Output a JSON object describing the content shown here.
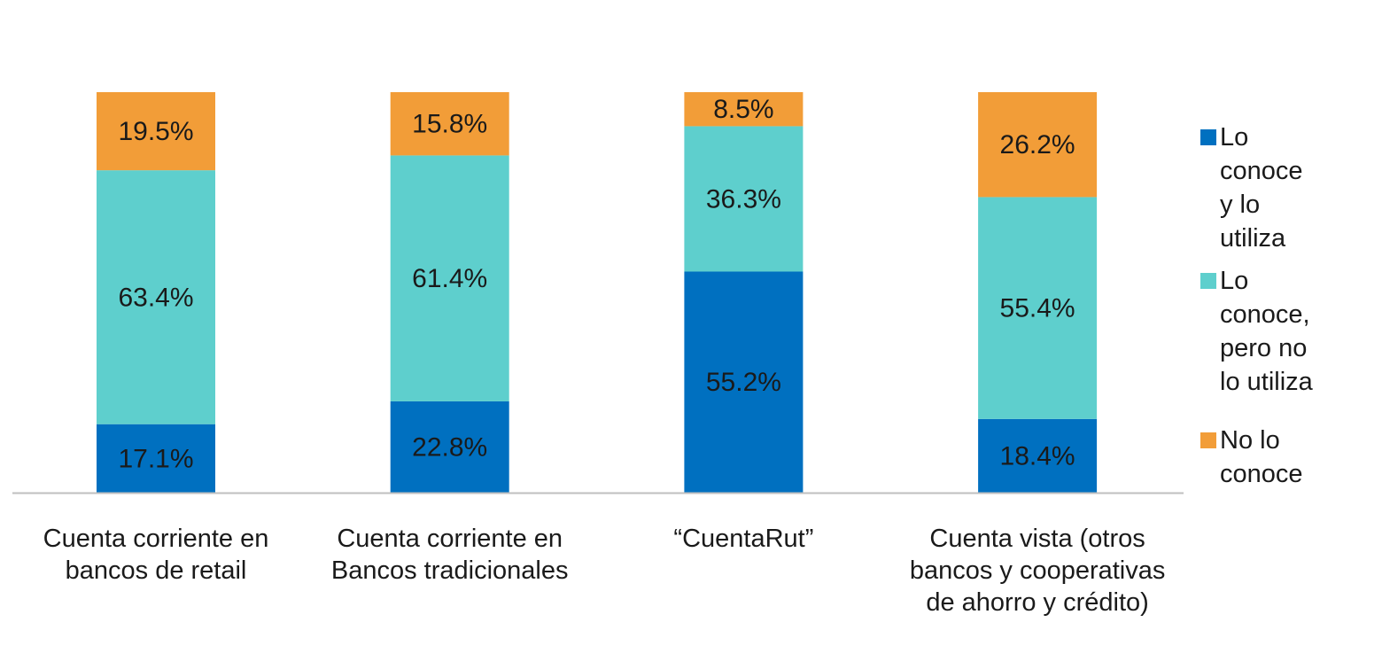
{
  "chart_data": {
    "type": "stacked_bar",
    "categories": [
      "Cuenta corriente en bancos de retail",
      "Cuenta corriente en Bancos tradicionales",
      "“CuentaRut”",
      "Cuenta vista (otros bancos y cooperativas de ahorro y crédito)"
    ],
    "series": [
      {
        "name": "Lo conoce y lo utiliza",
        "color": "#0070c0",
        "values": [
          17.1,
          22.8,
          55.2,
          18.4
        ],
        "value_labels": [
          "17.1%",
          "22.8%",
          "55.2%",
          "18.4%"
        ]
      },
      {
        "name": "Lo conoce, pero no lo utiliza",
        "color": "#5ecfcd",
        "values": [
          63.4,
          61.4,
          36.3,
          55.4
        ],
        "value_labels": [
          "63.4%",
          "61.4%",
          "36.3%",
          "55.4%"
        ]
      },
      {
        "name": "No lo conoce",
        "color": "#f29d38",
        "values": [
          19.5,
          15.8,
          8.5,
          26.2
        ],
        "value_labels": [
          "19.5%",
          "15.8%",
          "8.5%",
          "26.2%"
        ]
      }
    ],
    "ylim": [
      0,
      100
    ],
    "legend": "right"
  }
}
